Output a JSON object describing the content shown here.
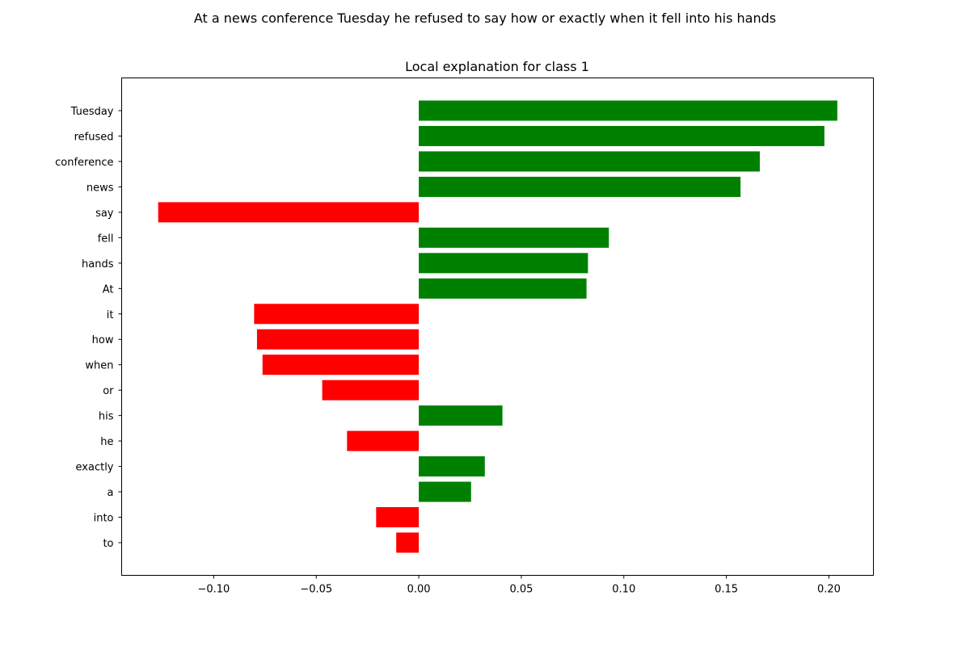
{
  "suptitle": "At a news conference Tuesday he refused to say how or exactly when it fell into his hands",
  "chart_data": {
    "type": "bar",
    "orientation": "horizontal",
    "title": "Local explanation for class 1",
    "xlabel": "",
    "ylabel": "",
    "categories": [
      "Tuesday",
      "refused",
      "conference",
      "news",
      "say",
      "fell",
      "hands",
      "At",
      "it",
      "how",
      "when",
      "or",
      "his",
      "he",
      "exactly",
      "a",
      "into",
      "to"
    ],
    "values": [
      0.2041,
      0.1978,
      0.1663,
      0.1569,
      -0.1271,
      0.0927,
      0.0825,
      0.0818,
      -0.0803,
      -0.0789,
      -0.0762,
      -0.0471,
      0.0408,
      -0.035,
      0.0322,
      0.0255,
      -0.0208,
      -0.011
    ],
    "xlim": [
      -0.1449,
      0.2217
    ],
    "xticks": [
      -0.1,
      -0.05,
      0.0,
      0.05,
      0.1,
      0.15,
      0.2
    ],
    "xtick_labels": [
      "−0.10",
      "−0.05",
      "0.00",
      "0.05",
      "0.10",
      "0.15",
      "0.20"
    ],
    "positive_color": "#008000",
    "negative_color": "#ff0000",
    "grid": false,
    "legend": "none"
  }
}
